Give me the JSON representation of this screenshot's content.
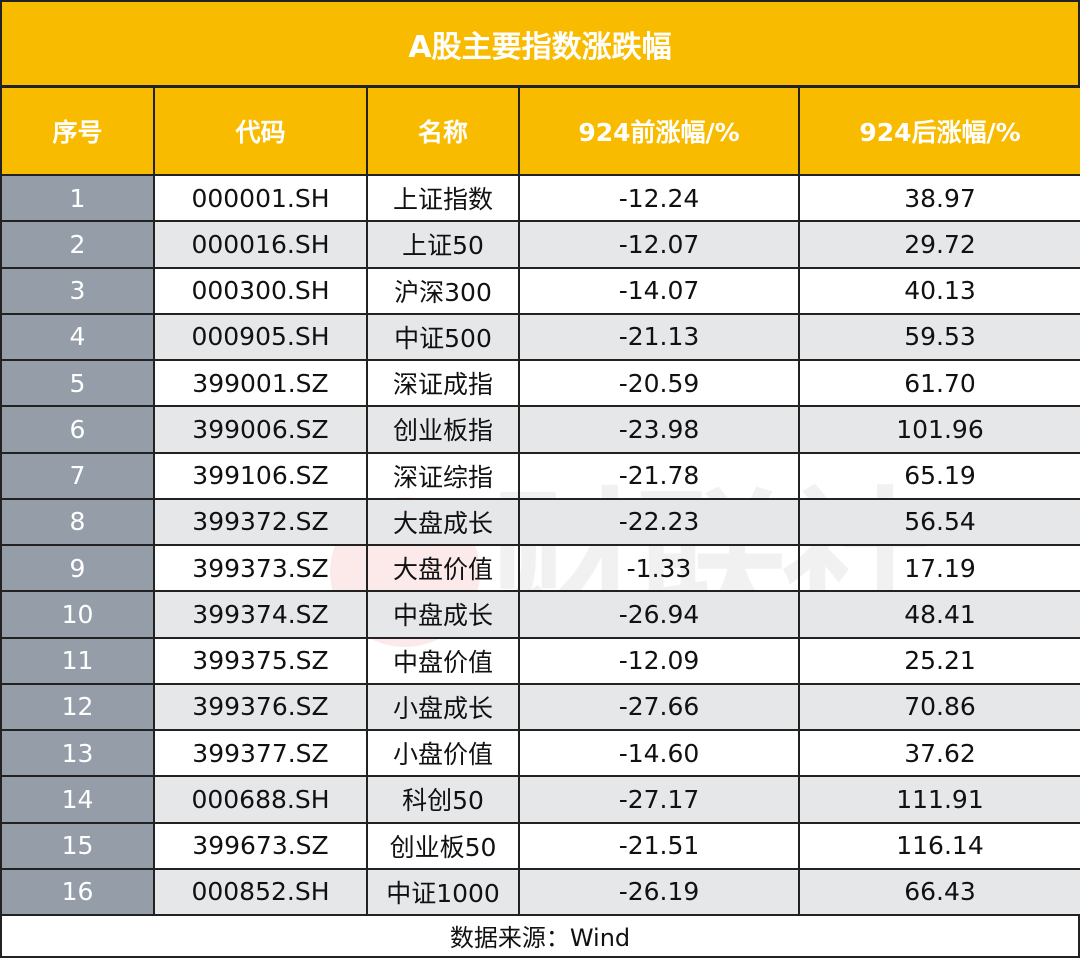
{
  "title": "A股主要指数涨跌幅",
  "columns": [
    "序号",
    "代码",
    "名称",
    "924前涨幅/%",
    "924后涨幅/%"
  ],
  "rows": [
    [
      "1",
      "000001.SH",
      "上证指数",
      "-12.24",
      "38.97"
    ],
    [
      "2",
      "000016.SH",
      "上证50",
      "-12.07",
      "29.72"
    ],
    [
      "3",
      "000300.SH",
      "沪深300",
      "-14.07",
      "40.13"
    ],
    [
      "4",
      "000905.SH",
      "中证500",
      "-21.13",
      "59.53"
    ],
    [
      "5",
      "399001.SZ",
      "深证成指",
      "-20.59",
      "61.70"
    ],
    [
      "6",
      "399006.SZ",
      "创业板指",
      "-23.98",
      "101.96"
    ],
    [
      "7",
      "399106.SZ",
      "深证综指",
      "-21.78",
      "65.19"
    ],
    [
      "8",
      "399372.SZ",
      "大盘成长",
      "-22.23",
      "56.54"
    ],
    [
      "9",
      "399373.SZ",
      "大盘价值",
      "-1.33",
      "17.19"
    ],
    [
      "10",
      "399374.SZ",
      "中盘成长",
      "-26.94",
      "48.41"
    ],
    [
      "11",
      "399375.SZ",
      "中盘价值",
      "-12.09",
      "25.21"
    ],
    [
      "12",
      "399376.SZ",
      "小盘成长",
      "-27.66",
      "70.86"
    ],
    [
      "13",
      "399377.SZ",
      "小盘价值",
      "-14.60",
      "37.62"
    ],
    [
      "14",
      "000688.SH",
      "科创50",
      "-27.17",
      "111.91"
    ],
    [
      "15",
      "399673.SZ",
      "创业板50",
      "-21.51",
      "116.14"
    ],
    [
      "16",
      "000852.SH",
      "中证1000",
      "-26.19",
      "66.43"
    ]
  ],
  "footer": "数据来源：Wind",
  "watermark": "财联社",
  "colors": {
    "header": "#f9bb00",
    "index_column": "#959ea8",
    "stripe": "#e6e7e9"
  }
}
